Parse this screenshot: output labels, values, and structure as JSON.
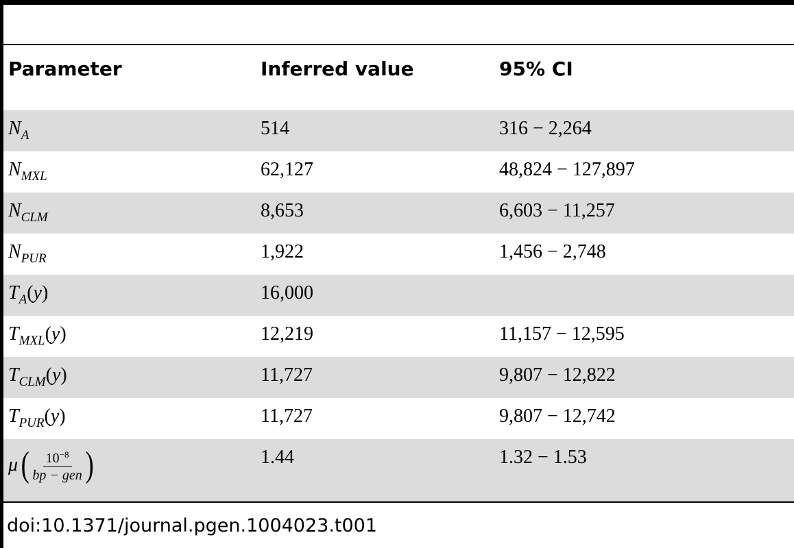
{
  "table": {
    "headers": [
      "Parameter",
      "Inferred value",
      "95% CI"
    ],
    "rows": [
      {
        "sym": "N",
        "sub": "A",
        "unit": "",
        "value": "514",
        "ci": "316 − 2,264"
      },
      {
        "sym": "N",
        "sub": "MXL",
        "unit": "",
        "value": "62,127",
        "ci": "48,824 − 127,897"
      },
      {
        "sym": "N",
        "sub": "CLM",
        "unit": "",
        "value": "8,653",
        "ci": "6,603 − 11,257"
      },
      {
        "sym": "N",
        "sub": "PUR",
        "unit": "",
        "value": "1,922",
        "ci": "1,456 − 2,748"
      },
      {
        "sym": "T",
        "sub": "A",
        "unit": "y",
        "value": "16,000",
        "ci": ""
      },
      {
        "sym": "T",
        "sub": "MXL",
        "unit": "y",
        "value": "12,219",
        "ci": "11,157 − 12,595"
      },
      {
        "sym": "T",
        "sub": "CLM",
        "unit": "y",
        "value": "11,727",
        "ci": "9,807 − 12,822"
      },
      {
        "sym": "T",
        "sub": "PUR",
        "unit": "y",
        "value": "11,727",
        "ci": "9,807 − 12,742"
      }
    ],
    "mu_row": {
      "sym": "μ",
      "frac_num": "10",
      "frac_exp": "−8",
      "frac_den": "bp − gen",
      "value": "1.44",
      "ci": "1.32 − 1.53"
    }
  },
  "footer": {
    "doi": "doi:10.1371/journal.pgen.1004023.t001"
  }
}
